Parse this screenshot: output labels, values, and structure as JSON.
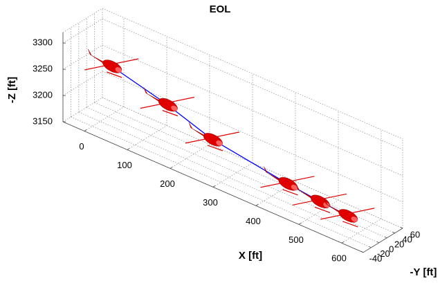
{
  "chart_data": {
    "type": "line3d",
    "title": "EOL",
    "x_label": "X [ft]",
    "y_label": "-Y [ft]",
    "z_label": "-Z [ft]",
    "x": [
      25,
      155,
      260,
      435,
      510,
      575
    ],
    "y": [
      0,
      0,
      0,
      0,
      0,
      0
    ],
    "z": [
      3265,
      3238,
      3209,
      3187,
      3180,
      3176
    ],
    "color": "#0000ff",
    "marker_color": "#e00000",
    "xlim": [
      -50,
      650
    ],
    "xticks": [
      0,
      100,
      200,
      300,
      400,
      500,
      600
    ],
    "ylim": [
      -40,
      60
    ],
    "yticks": [
      -40,
      -20,
      0,
      20,
      40,
      60
    ],
    "zlim": [
      3150,
      3320
    ],
    "zticks": [
      3150,
      3200,
      3250,
      3300
    ],
    "grid": true
  }
}
